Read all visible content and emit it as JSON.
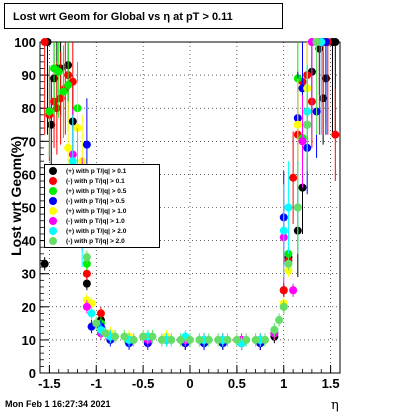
{
  "chart_data": {
    "type": "scatter",
    "title": "Lost wrt Geom for Global vs   η at pT > 0.11",
    "xlabel": "η",
    "ylabel": "Lost wrt Geom(%)",
    "xlim": [
      -1.6,
      1.6
    ],
    "ylim": [
      0,
      100
    ],
    "x_ticks": [
      "-1.5",
      "-1",
      "-0.5",
      "0",
      "0.5",
      "1",
      "1.5"
    ],
    "y_ticks": [
      "0",
      "10",
      "20",
      "30",
      "40",
      "50",
      "60",
      "70",
      "80",
      "90",
      "100"
    ],
    "grid": true,
    "legend_position": "left",
    "series": [
      {
        "name": "(+) with p T/|q| > 0.1",
        "color": "#000000",
        "points": [
          [
            -1.55,
            33
          ],
          [
            -1.52,
            100
          ],
          [
            -1.48,
            75
          ],
          [
            -1.45,
            89
          ],
          [
            -1.42,
            92
          ],
          [
            -1.38,
            92
          ],
          [
            -1.3,
            93
          ],
          [
            -1.25,
            76
          ],
          [
            -1.1,
            27
          ],
          [
            -0.95,
            16
          ],
          [
            -0.85,
            11
          ],
          [
            -0.65,
            10
          ],
          [
            -0.45,
            10
          ],
          [
            -0.25,
            10
          ],
          [
            -0.05,
            9
          ],
          [
            0.15,
            9
          ],
          [
            0.35,
            9
          ],
          [
            0.55,
            9
          ],
          [
            0.75,
            9
          ],
          [
            0.9,
            11
          ],
          [
            1.0,
            25
          ],
          [
            1.05,
            35
          ],
          [
            1.15,
            43
          ],
          [
            1.2,
            56
          ],
          [
            1.25,
            75
          ],
          [
            1.3,
            91
          ],
          [
            1.38,
            98
          ],
          [
            1.42,
            83
          ],
          [
            1.45,
            89
          ],
          [
            1.52,
            100
          ],
          [
            1.55,
            100
          ]
        ]
      },
      {
        "name": "(-) with p T/|q| > 0.1",
        "color": "#ff0000",
        "points": [
          [
            -1.55,
            100
          ],
          [
            -1.5,
            78
          ],
          [
            -1.45,
            82
          ],
          [
            -1.42,
            80
          ],
          [
            -1.38,
            83
          ],
          [
            -1.33,
            86
          ],
          [
            -1.3,
            90
          ],
          [
            -1.25,
            88
          ],
          [
            -1.1,
            30
          ],
          [
            -0.95,
            18
          ],
          [
            -0.85,
            11
          ],
          [
            -0.65,
            10
          ],
          [
            -0.45,
            10
          ],
          [
            -0.25,
            10
          ],
          [
            -0.05,
            10
          ],
          [
            0.15,
            10
          ],
          [
            0.35,
            10
          ],
          [
            0.55,
            9
          ],
          [
            0.75,
            9
          ],
          [
            0.9,
            12
          ],
          [
            1.0,
            25
          ],
          [
            1.05,
            34
          ],
          [
            1.1,
            59
          ],
          [
            1.15,
            72
          ],
          [
            1.2,
            88
          ],
          [
            1.25,
            90
          ],
          [
            1.3,
            82
          ],
          [
            1.38,
            100
          ],
          [
            1.42,
            100
          ],
          [
            1.47,
            100
          ],
          [
            1.55,
            72
          ]
        ]
      },
      {
        "name": "(+) with p T/|q| > 0.5",
        "color": "#00ee00",
        "points": [
          [
            -1.5,
            79
          ],
          [
            -1.45,
            92
          ],
          [
            -1.4,
            91
          ],
          [
            -1.35,
            85
          ],
          [
            -1.3,
            87
          ],
          [
            -1.2,
            80
          ],
          [
            -1.1,
            33
          ],
          [
            -0.95,
            15
          ],
          [
            -0.85,
            11
          ],
          [
            -0.65,
            10
          ],
          [
            -0.45,
            11
          ],
          [
            -0.25,
            10
          ],
          [
            -0.05,
            10
          ],
          [
            0.15,
            10
          ],
          [
            0.35,
            9
          ],
          [
            0.55,
            9
          ],
          [
            0.75,
            10
          ],
          [
            0.9,
            12
          ],
          [
            1.0,
            20
          ],
          [
            1.05,
            36
          ],
          [
            1.15,
            89
          ],
          [
            1.2,
            71
          ],
          [
            1.25,
            79
          ],
          [
            1.3,
            100
          ],
          [
            1.35,
            100
          ],
          [
            1.45,
            100
          ]
        ]
      },
      {
        "name": "(-) with p T/|q| > 0.5",
        "color": "#0000ff",
        "points": [
          [
            -1.1,
            69
          ],
          [
            -1.05,
            14
          ],
          [
            -0.95,
            14
          ],
          [
            -0.85,
            10
          ],
          [
            -0.65,
            9
          ],
          [
            -0.45,
            9
          ],
          [
            -0.25,
            10
          ],
          [
            -0.05,
            9
          ],
          [
            0.15,
            9
          ],
          [
            0.35,
            9
          ],
          [
            0.55,
            9
          ],
          [
            0.75,
            9
          ],
          [
            0.9,
            12
          ],
          [
            1.0,
            47
          ],
          [
            1.15,
            77
          ],
          [
            1.2,
            86
          ],
          [
            1.25,
            68
          ],
          [
            1.35,
            79
          ],
          [
            1.45,
            100
          ]
        ]
      },
      {
        "name": "(+) with p T/|q| > 1.0",
        "color": "#ffff00",
        "points": [
          [
            -1.3,
            68
          ],
          [
            -1.2,
            74
          ],
          [
            -1.15,
            64
          ],
          [
            -1.1,
            22
          ],
          [
            -1.05,
            21
          ],
          [
            -0.95,
            12
          ],
          [
            -0.85,
            12
          ],
          [
            -0.65,
            11
          ],
          [
            -0.45,
            11
          ],
          [
            -0.25,
            11
          ],
          [
            -0.05,
            10
          ],
          [
            0.15,
            10
          ],
          [
            0.35,
            10
          ],
          [
            0.55,
            10
          ],
          [
            0.75,
            10
          ],
          [
            0.9,
            12
          ],
          [
            1.0,
            21
          ],
          [
            1.05,
            31
          ],
          [
            1.15,
            75
          ],
          [
            1.25,
            86
          ],
          [
            1.35,
            100
          ]
        ]
      },
      {
        "name": "(-) with p T/|q| > 1.0",
        "color": "#ff00ff",
        "points": [
          [
            -1.25,
            66
          ],
          [
            -1.15,
            51
          ],
          [
            -1.1,
            20
          ],
          [
            -0.95,
            12
          ],
          [
            -0.85,
            11
          ],
          [
            -0.65,
            10
          ],
          [
            -0.45,
            10
          ],
          [
            -0.25,
            10
          ],
          [
            -0.05,
            10
          ],
          [
            0.15,
            10
          ],
          [
            0.35,
            10
          ],
          [
            0.55,
            10
          ],
          [
            0.75,
            10
          ],
          [
            0.9,
            12
          ],
          [
            1.0,
            41
          ],
          [
            1.1,
            25
          ],
          [
            1.2,
            70
          ],
          [
            1.3,
            100
          ],
          [
            1.4,
            100
          ]
        ]
      },
      {
        "name": "(+) with p T/|q| > 2.0",
        "color": "#00ffff",
        "points": [
          [
            -1.25,
            64
          ],
          [
            -1.15,
            46
          ],
          [
            -1.05,
            18
          ],
          [
            -0.95,
            13
          ],
          [
            -0.85,
            11
          ],
          [
            -0.65,
            10
          ],
          [
            -0.45,
            11
          ],
          [
            -0.25,
            10
          ],
          [
            -0.05,
            11
          ],
          [
            0.15,
            10
          ],
          [
            0.35,
            10
          ],
          [
            0.55,
            9
          ],
          [
            0.75,
            10
          ],
          [
            0.9,
            13
          ],
          [
            1.0,
            43
          ],
          [
            1.05,
            50
          ],
          [
            1.15,
            50
          ],
          [
            1.25,
            79
          ],
          [
            1.35,
            100
          ],
          [
            1.4,
            100
          ]
        ]
      },
      {
        "name": "(-) with p T/|q| > 2.0",
        "color": "#66dd66",
        "points": [
          [
            -1.2,
            60
          ],
          [
            -1.1,
            35
          ],
          [
            -1.0,
            15
          ],
          [
            -0.9,
            12
          ],
          [
            -0.8,
            11
          ],
          [
            -0.7,
            11
          ],
          [
            -0.6,
            10
          ],
          [
            -0.5,
            11
          ],
          [
            -0.4,
            11
          ],
          [
            -0.3,
            10
          ],
          [
            -0.2,
            10
          ],
          [
            -0.1,
            10
          ],
          [
            0.0,
            10
          ],
          [
            0.1,
            10
          ],
          [
            0.2,
            10
          ],
          [
            0.3,
            10
          ],
          [
            0.4,
            10
          ],
          [
            0.5,
            10
          ],
          [
            0.6,
            10
          ],
          [
            0.7,
            10
          ],
          [
            0.8,
            10
          ],
          [
            0.9,
            13
          ],
          [
            0.95,
            16
          ],
          [
            1.0,
            20
          ],
          [
            1.05,
            33
          ],
          [
            1.15,
            50
          ],
          [
            1.25,
            75
          ],
          [
            1.35,
            100
          ]
        ]
      }
    ]
  },
  "footer": {
    "timestamp": "Mon Feb  1 16:27:34 2021"
  }
}
